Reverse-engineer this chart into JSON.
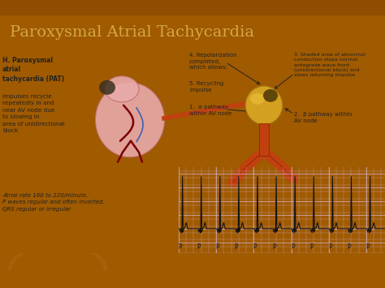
{
  "title": "Paroxysmal Atrial Tachycardia",
  "title_color": "#D4A843",
  "title_fontsize": 14,
  "bg_color": "#A05A00",
  "content_bg": "#EDE8D8",
  "left_header": "H. Paroxysmal\natrial\ntachycardia (PAT)",
  "left_body": "Impulses recycle\nrepeatedly in and\nnear AV node due\nto slowing in\narea of unidirectional\nblock",
  "left_footer": "Atrial rate 160 to 220/minute.\nP waves regular and often inverted.\nQRS regular or irregular",
  "label1": "1.  α pathway\nwithin AV node",
  "label2": "2.  β pathway within\nAV node",
  "label3": "3. Shaded area of abnormal\nconduction stops normal\nantegrade wave front\n(unidirectional block) and\nslows returning impulse",
  "label4": "4. Repolarization\ncompleted,\nwhich allows:",
  "label5": "5. Recycling\nimpulse",
  "ecg_grid_color": "#c8a0a0",
  "ecg_bg": "#f0d8d0",
  "ecg_line_color": "#111111",
  "p_label": "P",
  "font_color": "#222222",
  "heart_fill": "#E8AAAA",
  "heart_edge": "#C07070",
  "node_fill": "#D4A020",
  "node_edge": "#A07010",
  "tube_fill": "#C04010",
  "dark_blob": "#3A3020"
}
